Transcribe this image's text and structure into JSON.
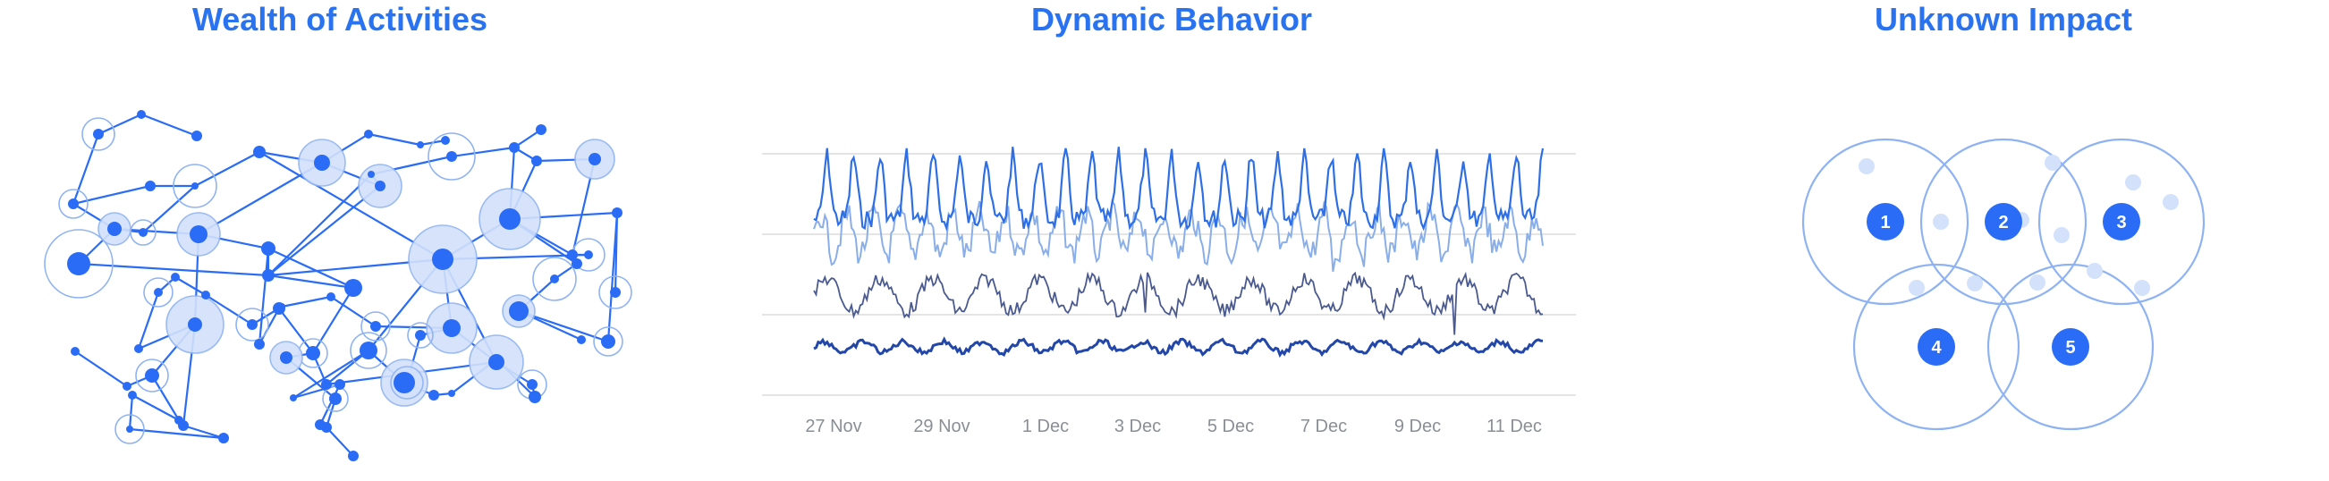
{
  "panels": {
    "network": {
      "title": "Wealth of Activities"
    },
    "timeseries": {
      "title": "Dynamic Behavior"
    },
    "venn": {
      "title": "Unknown Impact",
      "circles": [
        "1",
        "2",
        "3",
        "4",
        "5"
      ]
    }
  },
  "chart_data": {
    "type": "line",
    "title": "Dynamic Behavior",
    "x_tick_labels": [
      "27 Nov",
      "29 Nov",
      "1 Dec",
      "3 Dec",
      "5 Dec",
      "7 Dec",
      "9 Dec",
      "11 Dec"
    ],
    "grid": true,
    "series_count": 4,
    "note_values_unlabeled": true
  },
  "colors": {
    "title": "#2a73f0",
    "accent": "#2a6cf5",
    "accent_light": "#8fb3f2",
    "accent_fill": "#d3e1fb",
    "series_1": "#2e6fe6",
    "series_2": "#8aaee8",
    "series_3": "#4a5a90",
    "series_4": "#2247a8",
    "grid": "#dcdcdc",
    "tick_text": "#8a8f96"
  }
}
